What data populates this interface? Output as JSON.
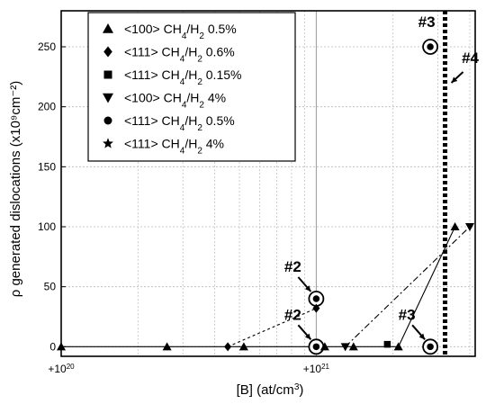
{
  "chart_data": {
    "type": "scatter",
    "xlabel": "[B] (at/cm3)",
    "xlabel_main": "[B] (at/cm",
    "xlabel_sup": "3",
    "xlabel_end": ")",
    "ylabel": "ρ generated dislocations (x10⁹cm⁻²)",
    "x_scale": "log",
    "xlim": [
      1e+20,
      4.2e+21
    ],
    "ylim": [
      -8,
      280
    ],
    "x_ticks": [
      {
        "value": 1e+20,
        "label_base": "+10",
        "label_exp": "20"
      },
      {
        "value": 1e+21,
        "label_base": "+10",
        "label_exp": "21"
      }
    ],
    "y_ticks": [
      0,
      50,
      100,
      150,
      200,
      250
    ],
    "grid": true,
    "legend_position": "top-left",
    "series": [
      {
        "name": "<100> CH4/H2 0.5%",
        "legend_text": "<100> CH",
        "legend_sub1": "4",
        "legend_mid": "/H",
        "legend_sub2": "2",
        "legend_tail": " 0.5%",
        "marker": "triangle-up",
        "line": "solid",
        "points": [
          [
            1e+20,
            0
          ],
          [
            2.6e+20,
            0
          ],
          [
            5.2e+20,
            0
          ],
          [
            1.08e+21,
            0
          ],
          [
            1.4e+21,
            0
          ],
          [
            2.1e+21,
            0
          ],
          [
            3.5e+21,
            100
          ]
        ]
      },
      {
        "name": "<111> CH4/H2 0.6%",
        "legend_text": "<111> CH",
        "legend_sub1": "4",
        "legend_mid": "/H",
        "legend_sub2": "2",
        "legend_tail": " 0.6%",
        "marker": "diamond",
        "line": "dashed",
        "points": [
          [
            4.5e+20,
            0
          ],
          [
            1e+21,
            32
          ]
        ]
      },
      {
        "name": "<111> CH4/H2 0.15%",
        "legend_text": "<111> CH",
        "legend_sub1": "4",
        "legend_mid": "/H",
        "legend_sub2": "2",
        "legend_tail": " 0.15%",
        "marker": "square",
        "line": "none",
        "points": [
          [
            1.9e+21,
            2
          ]
        ]
      },
      {
        "name": "<100> CH4/H2 4%",
        "legend_text": "<100> CH",
        "legend_sub1": "4",
        "legend_mid": "/H",
        "legend_sub2": "2",
        "legend_tail": " 4%",
        "marker": "triangle-down",
        "line": "dashdot",
        "points": [
          [
            1.3e+21,
            0
          ],
          [
            4e+21,
            100
          ]
        ]
      },
      {
        "name": "<111> CH4/H2 0.5%",
        "legend_text": "<111> CH",
        "legend_sub1": "4",
        "legend_mid": "/H",
        "legend_sub2": "2",
        "legend_tail": " 0.5%",
        "marker": "circle",
        "line": "none",
        "points": [
          [
            1e+21,
            0
          ],
          [
            1e+21,
            40
          ],
          [
            2.8e+21,
            0
          ],
          [
            2.8e+21,
            250
          ]
        ]
      },
      {
        "name": "<111> CH4/H2 4%",
        "legend_text": "<111> CH",
        "legend_sub1": "4",
        "legend_mid": "/H",
        "legend_sub2": "2",
        "legend_tail": " 4%",
        "marker": "star",
        "line": "none",
        "points": []
      }
    ],
    "ringed_points": [
      [
        1e+21,
        0
      ],
      [
        1e+21,
        40
      ],
      [
        2.8e+21,
        0
      ],
      [
        2.8e+21,
        250
      ]
    ],
    "vertical_line": {
      "x": 3.2e+21,
      "style": "dotted"
    },
    "annotations": [
      {
        "text": "#2",
        "x": 1e+21,
        "y": 40,
        "place": "above-left"
      },
      {
        "text": "#2",
        "x": 1e+21,
        "y": 0,
        "place": "above-left"
      },
      {
        "text": "#3",
        "x": 2.8e+21,
        "y": 0,
        "place": "above-left"
      },
      {
        "text": "#3",
        "x": 2.8e+21,
        "y": 250,
        "place": "above"
      },
      {
        "text": "#4",
        "x": 3.2e+21,
        "y": 220,
        "place": "right"
      }
    ]
  }
}
